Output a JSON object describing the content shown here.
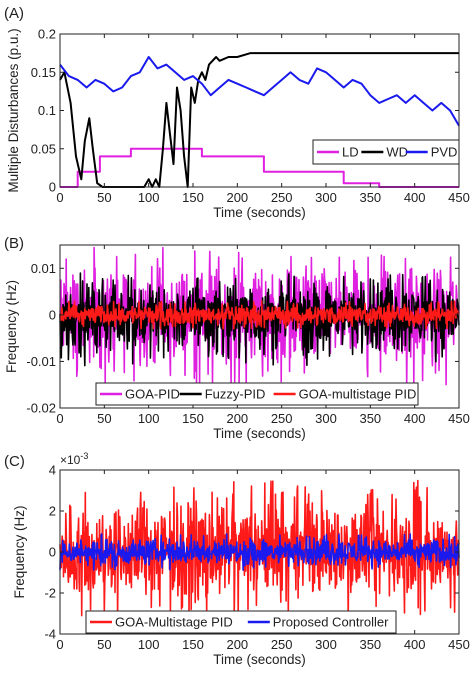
{
  "chart_data": [
    {
      "panel_label": "(A)",
      "type": "line",
      "xlabel": "Time (seconds)",
      "ylabel": "Multiple Disturbances (p.u.)",
      "xlim": [
        0,
        450
      ],
      "ylim": [
        0,
        0.2
      ],
      "xticks": [
        0,
        50,
        100,
        150,
        200,
        250,
        300,
        350,
        400,
        450
      ],
      "yticks": [
        0,
        0.05,
        0.1,
        0.15,
        0.2
      ],
      "ytick_labels": [
        "0",
        "0.05",
        "0.1",
        "0.15",
        "0.2"
      ],
      "legend_position": "bottom-right",
      "grid": false,
      "series": [
        {
          "name": "LD",
          "color": "#e020e0",
          "x": [
            0,
            20,
            20,
            45,
            45,
            80,
            80,
            160,
            160,
            230,
            230,
            320,
            320,
            360,
            360,
            450
          ],
          "y": [
            0,
            0,
            0.02,
            0.02,
            0.04,
            0.04,
            0.05,
            0.05,
            0.04,
            0.04,
            0.02,
            0.02,
            0.005,
            0.005,
            0,
            0
          ]
        },
        {
          "name": "WD",
          "color": "#000000",
          "x": [
            0,
            5,
            12,
            18,
            24,
            28,
            33,
            37,
            42,
            48,
            52,
            60,
            95,
            100,
            104,
            108,
            112,
            116,
            120,
            124,
            128,
            132,
            136,
            140,
            144,
            148,
            152,
            156,
            160,
            164,
            168,
            172,
            176,
            180,
            190,
            200,
            215,
            230,
            450
          ],
          "y": [
            0.14,
            0.15,
            0.11,
            0.04,
            0.01,
            0.06,
            0.09,
            0.05,
            0.005,
            0,
            0,
            0,
            0,
            0.01,
            0,
            0.01,
            0,
            0.05,
            0.11,
            0.07,
            0.03,
            0.13,
            0.1,
            0.04,
            0,
            0.13,
            0.11,
            0.14,
            0.15,
            0.14,
            0.16,
            0.165,
            0.17,
            0.165,
            0.17,
            0.17,
            0.175,
            0.175,
            0.175
          ]
        },
        {
          "name": "PVD",
          "color": "#1a1aee",
          "x": [
            0,
            10,
            20,
            30,
            40,
            50,
            60,
            70,
            80,
            90,
            100,
            110,
            120,
            130,
            140,
            150,
            160,
            170,
            180,
            190,
            200,
            210,
            220,
            230,
            240,
            250,
            260,
            270,
            280,
            290,
            300,
            310,
            320,
            330,
            340,
            350,
            360,
            370,
            380,
            390,
            400,
            410,
            420,
            430,
            440,
            450
          ],
          "y": [
            0.16,
            0.145,
            0.14,
            0.13,
            0.14,
            0.135,
            0.125,
            0.13,
            0.145,
            0.15,
            0.17,
            0.155,
            0.16,
            0.15,
            0.14,
            0.145,
            0.135,
            0.12,
            0.13,
            0.14,
            0.135,
            0.13,
            0.125,
            0.12,
            0.13,
            0.14,
            0.15,
            0.14,
            0.135,
            0.155,
            0.15,
            0.14,
            0.13,
            0.14,
            0.135,
            0.12,
            0.11,
            0.115,
            0.12,
            0.11,
            0.12,
            0.11,
            0.1,
            0.11,
            0.1,
            0.08
          ]
        }
      ]
    },
    {
      "panel_label": "(B)",
      "type": "line",
      "xlabel": "Time (seconds)",
      "ylabel": "Frequency (Hz)",
      "xlim": [
        0,
        450
      ],
      "ylim": [
        -0.02,
        0.015
      ],
      "xticks": [
        0,
        50,
        100,
        150,
        200,
        250,
        300,
        350,
        400,
        450
      ],
      "yticks": [
        -0.02,
        -0.01,
        0,
        0.01
      ],
      "ytick_labels": [
        "-0.02",
        "-0.01",
        "0",
        "0.01"
      ],
      "legend_position": "bottom",
      "grid": false,
      "series": [
        {
          "name": "GOA-PID",
          "color": "#e020e0",
          "x": [
            0,
            450
          ],
          "y_range": [
            -0.015,
            0.0145
          ]
        },
        {
          "name": "Fuzzy-PID",
          "color": "#000000",
          "x": [
            0,
            450
          ],
          "y_range": [
            -0.011,
            0.009
          ]
        },
        {
          "name": "GOA-multistage PID",
          "color": "#ff1a1a",
          "x": [
            0,
            450
          ],
          "y_range": [
            -0.003,
            0.003
          ]
        }
      ]
    },
    {
      "panel_label": "(C)",
      "type": "line",
      "xlabel": "Time (seconds)",
      "ylabel": "Frequency (Hz)",
      "y_multiplier": "×10",
      "y_multiplier_exponent": "-3",
      "xlim": [
        0,
        450
      ],
      "ylim": [
        -4,
        4
      ],
      "xticks": [
        0,
        50,
        100,
        150,
        200,
        250,
        300,
        350,
        400,
        450
      ],
      "yticks": [
        -4,
        -2,
        0,
        2,
        4
      ],
      "ytick_labels": [
        "-4",
        "-2",
        "0",
        "2",
        "4"
      ],
      "legend_position": "bottom",
      "grid": false,
      "series": [
        {
          "name": "GOA-Multistage PID",
          "color": "#ff1a1a",
          "x": [
            0,
            450
          ],
          "y_range": [
            -3.2,
            3.5
          ]
        },
        {
          "name": "Proposed  Controller",
          "color": "#1a1aee",
          "x": [
            0,
            450
          ],
          "y_range": [
            -0.9,
            0.9
          ]
        }
      ]
    }
  ]
}
